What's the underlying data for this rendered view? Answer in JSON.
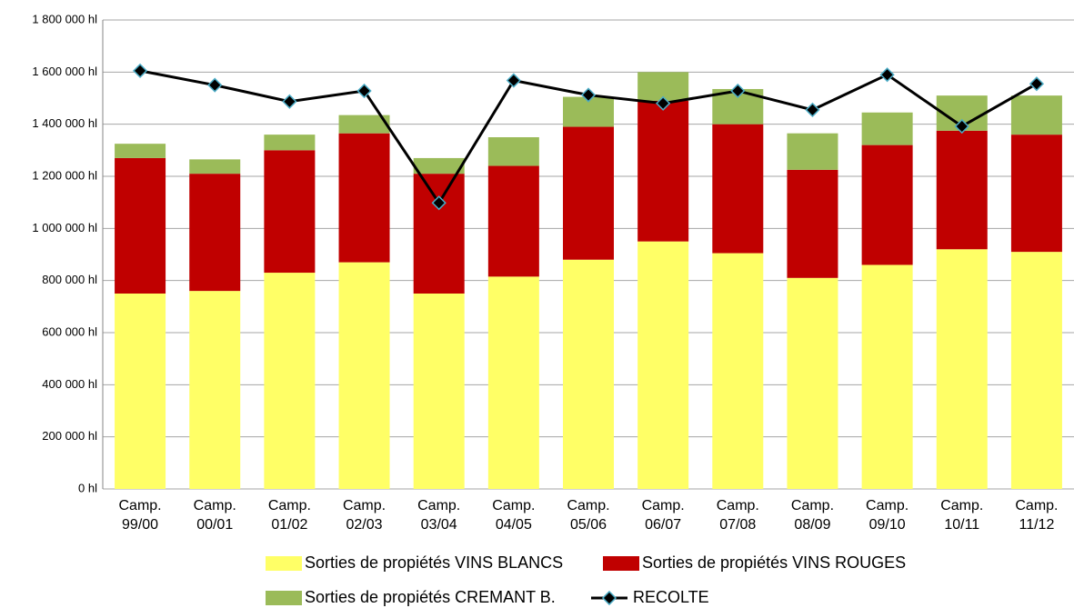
{
  "chart_data": {
    "type": "stacked_bar_line",
    "categories": [
      "Camp. 99/00",
      "Camp. 00/01",
      "Camp. 01/02",
      "Camp. 02/03",
      "Camp. 03/04",
      "Camp. 04/05",
      "Camp. 05/06",
      "Camp. 06/07",
      "Camp. 07/08",
      "Camp. 08/09",
      "Camp. 09/10",
      "Camp. 10/11",
      "Camp. 11/12"
    ],
    "series": [
      {
        "name": "Sorties de propiétés VINS BLANCS",
        "type": "bar",
        "color": "#ffff66",
        "values": [
          750000,
          760000,
          830000,
          870000,
          750000,
          815000,
          880000,
          950000,
          905000,
          810000,
          860000,
          920000,
          910000
        ]
      },
      {
        "name": "Sorties de propiétés VINS ROUGES",
        "type": "bar",
        "color": "#c00000",
        "values": [
          520000,
          450000,
          470000,
          495000,
          460000,
          425000,
          510000,
          540000,
          495000,
          415000,
          460000,
          455000,
          450000
        ]
      },
      {
        "name": "Sorties de propiétés CREMANT B.",
        "type": "bar",
        "color": "#9bbb59",
        "values": [
          55000,
          55000,
          60000,
          70000,
          60000,
          110000,
          115000,
          110000,
          135000,
          140000,
          125000,
          135000,
          150000
        ]
      },
      {
        "name": "RECOLTE",
        "type": "line",
        "color": "#000000",
        "marker_color": "#4bacc6",
        "values": [
          1605000,
          1550000,
          1487000,
          1528000,
          1098000,
          1568000,
          1512000,
          1480000,
          1528000,
          1455000,
          1590000,
          1392000,
          1555000
        ]
      }
    ],
    "ylim": [
      0,
      1800000
    ],
    "yticks": [
      {
        "value": 0,
        "label": "0 hl"
      },
      {
        "value": 200000,
        "label": "200 000 hl"
      },
      {
        "value": 400000,
        "label": "400 000 hl"
      },
      {
        "value": 600000,
        "label": "600 000 hl"
      },
      {
        "value": 800000,
        "label": "800 000 hl"
      },
      {
        "value": 1000000,
        "label": "1 000 000 hl"
      },
      {
        "value": 1200000,
        "label": "1 200 000 hl"
      },
      {
        "value": 1400000,
        "label": "1 400 000 hl"
      },
      {
        "value": 1600000,
        "label": "1 600 000 hl"
      },
      {
        "value": 1800000,
        "label": "1 800 000 hl"
      }
    ],
    "grid": true
  }
}
